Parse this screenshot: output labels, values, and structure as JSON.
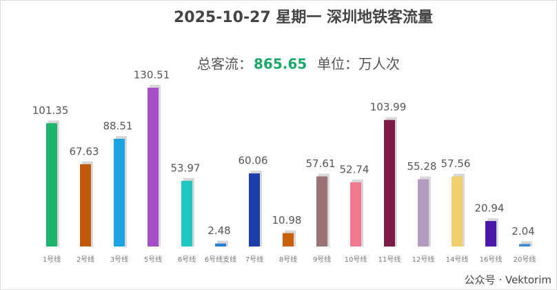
{
  "chart_data": {
    "type": "bar",
    "title": "2025-10-27 星期一  深圳地铁客流量",
    "total_label": "总客流：",
    "total": "865.65",
    "unit_label": "单位：万人次",
    "watermark": "公众号 · Vektorim",
    "categories": [
      "1号线",
      "2号线",
      "3号线",
      "5号线",
      "6号线",
      "6号线支线",
      "7号线",
      "8号线",
      "9号线",
      "10号线",
      "11号线",
      "12号线",
      "14号线",
      "16号线",
      "20号线"
    ],
    "values": [
      101.35,
      67.63,
      88.51,
      130.51,
      53.97,
      2.48,
      60.06,
      10.98,
      57.61,
      52.74,
      103.99,
      55.28,
      57.56,
      20.94,
      2.04
    ],
    "colors": [
      "#1db56b",
      "#c05a0a",
      "#1aa3e0",
      "#a64fc4",
      "#1ec8c0",
      "#2a7fd0",
      "#1b3ea8",
      "#c8600a",
      "#9a7474",
      "#f07890",
      "#7a1a45",
      "#b39cc0",
      "#f2cf6c",
      "#4a18a8",
      "#3a8ad0"
    ]
  }
}
